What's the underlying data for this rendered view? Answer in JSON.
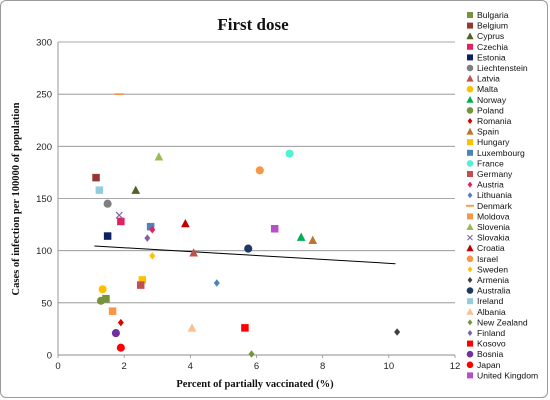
{
  "chart_data": {
    "type": "scatter",
    "title": "First dose",
    "xlabel": "Percent of partially vaccinated (%)",
    "ylabel": "Cases of infection per 100000 of population",
    "xlim": [
      0,
      12
    ],
    "ylim": [
      0,
      300
    ],
    "xticks": [
      "0",
      "2",
      "4",
      "6",
      "8",
      "10",
      "12"
    ],
    "yticks": [
      "0",
      "50",
      "100",
      "150",
      "200",
      "250",
      "300"
    ],
    "grid": "horizontal",
    "legend_position": "right",
    "trendline": {
      "x": [
        1.1,
        10.2
      ],
      "y": [
        104.5,
        87.5
      ],
      "color": "#000000"
    },
    "series": [
      {
        "name": "Bulgaria",
        "marker": "square",
        "color": "#77933C",
        "x": [
          1.45
        ],
        "y": [
          54
        ]
      },
      {
        "name": "Belgium",
        "marker": "square",
        "color": "#953735",
        "x": [
          1.15
        ],
        "y": [
          170
        ]
      },
      {
        "name": "Cyprus",
        "marker": "triangle",
        "color": "#4F6228",
        "x": [
          2.35
        ],
        "y": [
          158
        ]
      },
      {
        "name": "Czechia",
        "marker": "square",
        "color": "#E0225E",
        "x": [
          1.9
        ],
        "y": [
          128
        ]
      },
      {
        "name": "Estonia",
        "marker": "square",
        "color": "#0B2161",
        "x": [
          1.5
        ],
        "y": [
          114
        ]
      },
      {
        "name": "Liechtenstein",
        "marker": "circle",
        "color": "#7F7F7F",
        "x": [
          1.5
        ],
        "y": [
          145
        ]
      },
      {
        "name": "Latvia",
        "marker": "triangle",
        "color": "#C0504D",
        "x": [
          4.1
        ],
        "y": [
          98
        ]
      },
      {
        "name": "Malta",
        "marker": "circle",
        "color": "#FFC000",
        "x": [
          1.35
        ],
        "y": [
          63
        ]
      },
      {
        "name": "Norway",
        "marker": "triangle",
        "color": "#00B050",
        "x": [
          7.35
        ],
        "y": [
          113
        ]
      },
      {
        "name": "Poland",
        "marker": "circle",
        "color": "#77933C",
        "x": [
          1.3
        ],
        "y": [
          52
        ]
      },
      {
        "name": "Romania",
        "marker": "diamond",
        "color": "#E00000",
        "x": [
          1.9
        ],
        "y": [
          31
        ]
      },
      {
        "name": "Spain",
        "marker": "triangle",
        "color": "#C0732F",
        "x": [
          7.7
        ],
        "y": [
          110
        ]
      },
      {
        "name": "Hungary",
        "marker": "square",
        "color": "#FFC000",
        "x": [
          2.55
        ],
        "y": [
          72
        ]
      },
      {
        "name": "Luxembourg",
        "marker": "square",
        "color": "#4F81BD",
        "x": [
          2.8
        ],
        "y": [
          123
        ]
      },
      {
        "name": "France",
        "marker": "circle",
        "color": "#4FF2D7",
        "x": [
          7.0
        ],
        "y": [
          193
        ]
      },
      {
        "name": "Germany",
        "marker": "square",
        "color": "#C0504D",
        "x": [
          2.5
        ],
        "y": [
          67
        ]
      },
      {
        "name": "Austria",
        "marker": "diamond",
        "color": "#E0225E",
        "x": [
          2.85
        ],
        "y": [
          120
        ]
      },
      {
        "name": "Lithuania",
        "marker": "diamond",
        "color": "#4F81BD",
        "x": [
          4.8
        ],
        "y": [
          69
        ]
      },
      {
        "name": "Denmark",
        "marker": "dash",
        "color": "#F79646",
        "x": [
          1.85
        ],
        "y": [
          250
        ]
      },
      {
        "name": "Moldova",
        "marker": "square",
        "color": "#F79646",
        "x": [
          1.65
        ],
        "y": [
          42
        ]
      },
      {
        "name": "Slovenia",
        "marker": "triangle",
        "color": "#9BBB59",
        "x": [
          3.05
        ],
        "y": [
          190
        ]
      },
      {
        "name": "Slovakia",
        "marker": "x",
        "color": "#8064A2",
        "x": [
          1.85
        ],
        "y": [
          134
        ]
      },
      {
        "name": "Croatia",
        "marker": "triangle",
        "color": "#C00000",
        "x": [
          3.85
        ],
        "y": [
          126
        ]
      },
      {
        "name": "Israel",
        "marker": "circle",
        "color": "#F79646",
        "x": [
          6.1
        ],
        "y": [
          177
        ]
      },
      {
        "name": "Sweden",
        "marker": "diamond",
        "color": "#FFC000",
        "x": [
          2.85
        ],
        "y": [
          95
        ]
      },
      {
        "name": "Armenia",
        "marker": "diamond",
        "color": "#404040",
        "x": [
          10.25
        ],
        "y": [
          22
        ]
      },
      {
        "name": "Australia",
        "marker": "circle",
        "color": "#1F3864",
        "x": [
          5.75
        ],
        "y": [
          102
        ]
      },
      {
        "name": "Ireland",
        "marker": "square",
        "color": "#93CDDD",
        "x": [
          1.25
        ],
        "y": [
          158
        ]
      },
      {
        "name": "Albania",
        "marker": "triangle",
        "color": "#FAC090",
        "x": [
          4.05
        ],
        "y": [
          26
        ]
      },
      {
        "name": "New Zealand",
        "marker": "diamond",
        "color": "#77933C",
        "x": [
          5.85
        ],
        "y": [
          1
        ]
      },
      {
        "name": "Finland",
        "marker": "diamond",
        "color": "#8064A2",
        "x": [
          2.7
        ],
        "y": [
          112
        ]
      },
      {
        "name": "Kosovo",
        "marker": "square",
        "color": "#FF0000",
        "x": [
          5.65
        ],
        "y": [
          26
        ]
      },
      {
        "name": "Bosnia",
        "marker": "circle",
        "color": "#7030A0",
        "x": [
          1.75
        ],
        "y": [
          21
        ]
      },
      {
        "name": "Japan",
        "marker": "circle",
        "color": "#FF0000",
        "x": [
          1.9
        ],
        "y": [
          7
        ]
      },
      {
        "name": "United Kingdom",
        "marker": "square",
        "color": "#B64FC8",
        "x": [
          6.55
        ],
        "y": [
          121
        ]
      }
    ]
  }
}
